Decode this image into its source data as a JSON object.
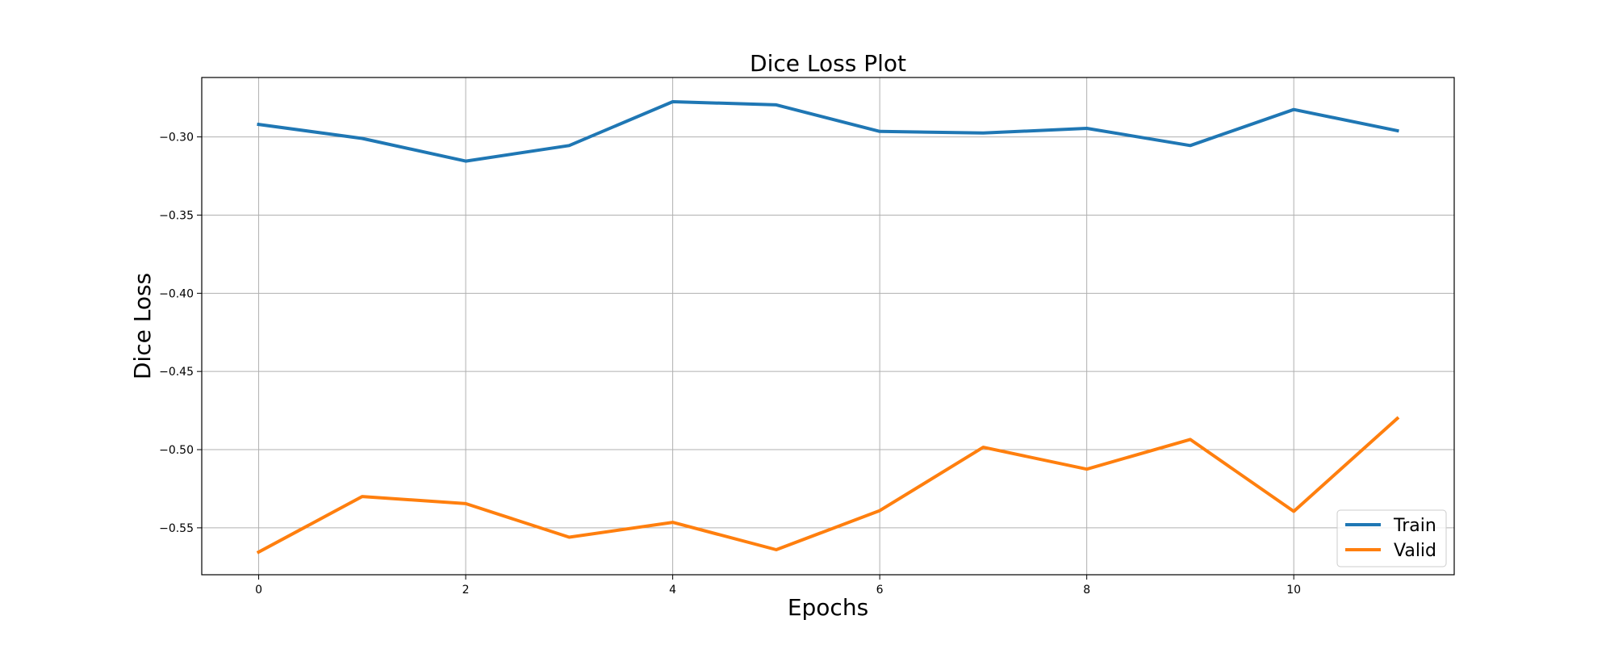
{
  "chart_data": {
    "type": "line",
    "title": "Dice Loss Plot",
    "xlabel": "Epochs",
    "ylabel": "Dice Loss",
    "x": [
      0,
      1,
      2,
      3,
      4,
      5,
      6,
      7,
      8,
      9,
      10,
      11
    ],
    "xlim": [
      -0.55,
      11.55
    ],
    "ylim": [
      -0.58,
      -0.262
    ],
    "xticks": [
      0,
      2,
      4,
      6,
      8,
      10
    ],
    "xtick_labels": [
      "0",
      "2",
      "4",
      "6",
      "8",
      "10"
    ],
    "yticks": [
      -0.3,
      -0.35,
      -0.4,
      -0.45,
      -0.5,
      -0.55
    ],
    "ytick_labels": [
      "−0.30",
      "−0.35",
      "−0.40",
      "−0.45",
      "−0.50",
      "−0.55"
    ],
    "grid": true,
    "legend_position": "lower-right",
    "series": [
      {
        "name": "Train",
        "color": "#1f77b4",
        "values": [
          -0.292,
          -0.301,
          -0.3155,
          -0.3055,
          -0.2775,
          -0.2795,
          -0.2965,
          -0.2975,
          -0.2945,
          -0.3055,
          -0.2825,
          -0.296
        ]
      },
      {
        "name": "Valid",
        "color": "#ff7f0e",
        "values": [
          -0.5655,
          -0.53,
          -0.5345,
          -0.556,
          -0.5465,
          -0.564,
          -0.539,
          -0.4985,
          -0.5125,
          -0.4935,
          -0.5395,
          -0.48
        ]
      }
    ]
  }
}
